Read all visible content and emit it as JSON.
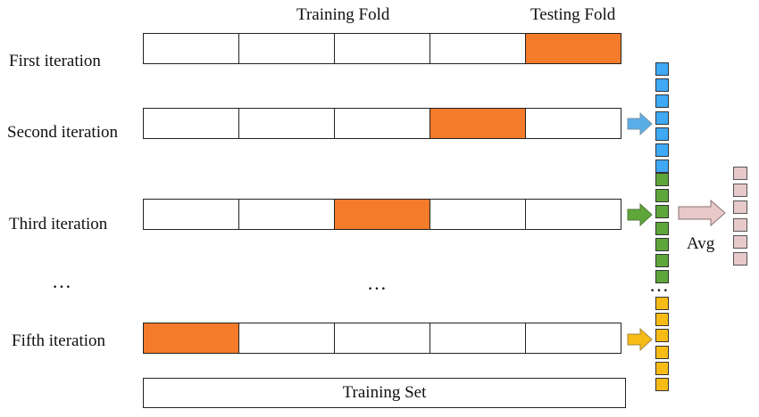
{
  "header": {
    "training_fold_label": "Training Fold",
    "testing_fold_label": "Testing Fold"
  },
  "iterations": [
    {
      "label": "First iteration",
      "test_fold_index": 4,
      "has_arrow": false
    },
    {
      "label": "Second iteration",
      "test_fold_index": 3,
      "has_arrow": true,
      "arrow_color": "#5aaee8"
    },
    {
      "label": "Third iteration",
      "test_fold_index": 2,
      "has_arrow": true,
      "arrow_color": "#5ea63a"
    },
    {
      "label": "Fifth iteration",
      "test_fold_index": 0,
      "has_arrow": true,
      "arrow_color": "#f7bb16"
    }
  ],
  "ellipsis": {
    "left": "…",
    "middle": "…",
    "right": "…"
  },
  "training_set_label": "Training Set",
  "avg_label": "Avg",
  "fold_count": 5,
  "score_groups": [
    {
      "color": "#3fa9f5",
      "count": 7
    },
    {
      "color": "#5ea63a",
      "count": 7
    },
    {
      "color": "#f7bb16",
      "count": 6
    }
  ],
  "avg_result": {
    "color": "#e8c9c9",
    "count": 6
  },
  "colors": {
    "test_fold": "#f47b2a",
    "fold_border": "#222222",
    "avg_arrow": "#e8c9c9"
  }
}
